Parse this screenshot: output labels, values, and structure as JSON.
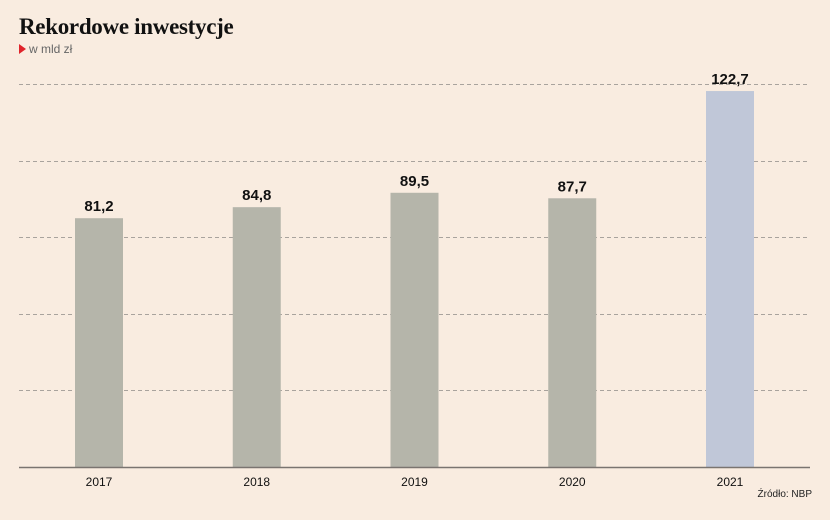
{
  "header": {
    "title": "Rekordowe inwestycje",
    "subtitle": "w mld zł"
  },
  "footer": {
    "source": "Źródło: NBP"
  },
  "colors": {
    "background": "#f9ece0",
    "bar_default": "#b5b5aa",
    "bar_highlight": "#c0c7d8",
    "grid": "#a9a39d",
    "axis": "#7a7470",
    "marker": "#e0242b"
  },
  "chart_data": {
    "type": "bar",
    "title": "Rekordowe inwestycje",
    "subtitle": "w mld zł",
    "categories": [
      "2017",
      "2018",
      "2019",
      "2020",
      "2021"
    ],
    "values": [
      81.2,
      84.8,
      89.5,
      87.7,
      122.7
    ],
    "value_labels": [
      "81,2",
      "84,8",
      "89,5",
      "87,7",
      "122,7"
    ],
    "highlight_index": 4,
    "xlabel": "",
    "ylabel": "",
    "ylim": [
      0,
      125
    ],
    "gridlines": [
      25,
      50,
      75,
      100,
      125
    ],
    "grid": true,
    "grid_style": "dashed",
    "legend": "none"
  }
}
